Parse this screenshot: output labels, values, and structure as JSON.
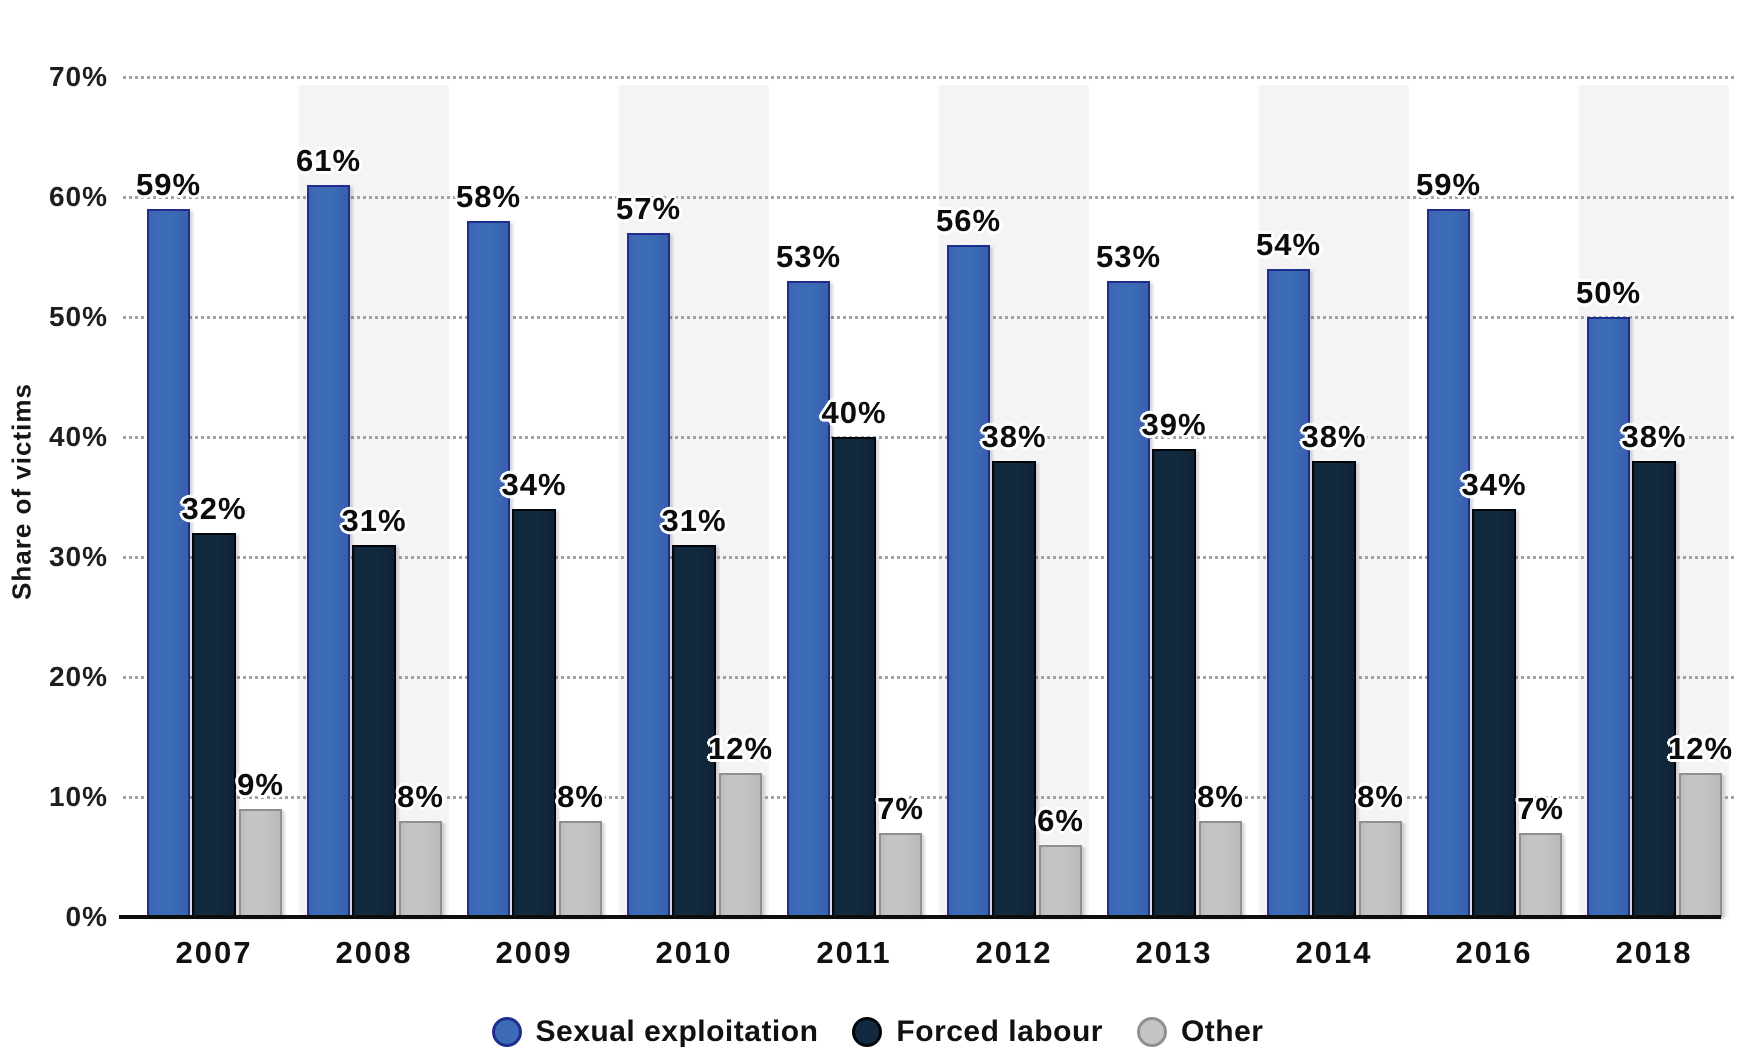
{
  "chart_data": {
    "type": "bar",
    "title": "",
    "ylabel": "Share of victims",
    "xlabel": "",
    "ylim": [
      0,
      70
    ],
    "ytick_step": 10,
    "ytick_labels": [
      "0%",
      "10%",
      "20%",
      "30%",
      "40%",
      "50%",
      "60%",
      "70%"
    ],
    "grid": "horizontal-dotted",
    "legend_position": "bottom",
    "value_label_format": "{v}%",
    "categories": [
      "2007",
      "2008",
      "2009",
      "2010",
      "2011",
      "2012",
      "2013",
      "2014",
      "2016",
      "2018"
    ],
    "series": [
      {
        "name": "Sexual exploitation",
        "color": "#3d6cb6",
        "border_color": "#1e2d8e",
        "values": [
          59,
          61,
          58,
          57,
          53,
          56,
          53,
          54,
          59,
          50
        ]
      },
      {
        "name": "Forced labour",
        "color": "#122a40",
        "border_color": "#020609",
        "values": [
          32,
          31,
          34,
          31,
          40,
          38,
          39,
          38,
          34,
          38
        ]
      },
      {
        "name": "Other",
        "color": "#c4c4c6",
        "border_color": "#8f8f91",
        "values": [
          9,
          8,
          8,
          12,
          7,
          6,
          8,
          8,
          7,
          12
        ]
      }
    ],
    "striped_group_indexes": [
      1,
      3,
      5,
      7,
      9
    ],
    "stripe_color": "#f4f4f6",
    "gridline_color": "#a2a2a2",
    "axis_line_color": "#0d0d0d",
    "label_text_color": "#0c0c0c"
  }
}
